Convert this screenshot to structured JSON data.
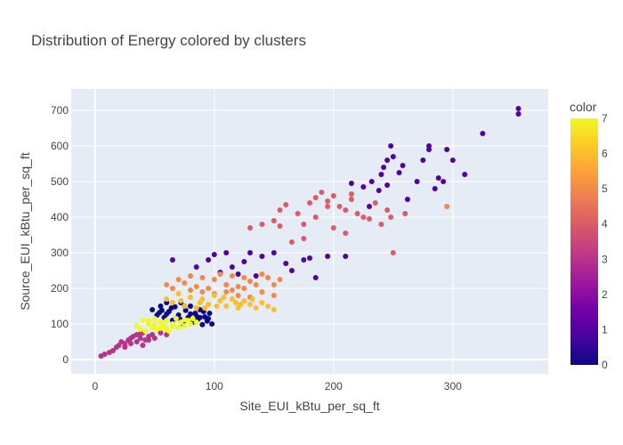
{
  "chart_data": {
    "type": "scatter",
    "title": "Distribution of Energy colored by clusters",
    "xlabel": "Site_EUI_kBtu_per_sq_ft",
    "ylabel": "Source_EUI_kBtu_per_sq_ft",
    "xlim": [
      -20,
      380
    ],
    "ylim": [
      -40,
      760
    ],
    "xticks": [
      0,
      100,
      200,
      300
    ],
    "yticks": [
      0,
      100,
      200,
      300,
      400,
      500,
      600,
      700
    ],
    "grid": true,
    "colorbar": {
      "title": "color",
      "range": [
        0,
        7
      ],
      "ticks": [
        0,
        1,
        2,
        3,
        4,
        5,
        6,
        7
      ],
      "colors": [
        "#0d0887",
        "#46039f",
        "#7201a8",
        "#9c179e",
        "#bd3786",
        "#d8576b",
        "#ed7953",
        "#fb9f3a",
        "#fdca26",
        "#f0f921"
      ]
    },
    "series": [
      {
        "cluster": 0,
        "points": [
          [
            48,
            140
          ],
          [
            52,
            125
          ],
          [
            55,
            150
          ],
          [
            58,
            118
          ],
          [
            60,
            160
          ],
          [
            62,
            135
          ],
          [
            65,
            110
          ],
          [
            67,
            148
          ],
          [
            70,
            125
          ],
          [
            72,
            160
          ],
          [
            74,
            100
          ],
          [
            76,
            138
          ],
          [
            78,
            118
          ],
          [
            80,
            150
          ],
          [
            82,
            105
          ],
          [
            84,
            130
          ],
          [
            86,
            112
          ],
          [
            88,
            140
          ],
          [
            90,
            98
          ],
          [
            92,
            120
          ],
          [
            94,
            108
          ],
          [
            96,
            130
          ],
          [
            98,
            100
          ],
          [
            56,
            138
          ],
          [
            64,
            145
          ],
          [
            68,
            115
          ],
          [
            75,
            150
          ],
          [
            85,
            122
          ],
          [
            91,
            135
          ],
          [
            60,
            128
          ],
          [
            72,
            112
          ],
          [
            80,
            128
          ],
          [
            88,
            118
          ],
          [
            95,
            115
          ],
          [
            54,
            132
          ]
        ]
      },
      {
        "cluster": 1,
        "points": [
          [
            65,
            280
          ],
          [
            85,
            260
          ],
          [
            95,
            280
          ],
          [
            100,
            295
          ],
          [
            110,
            300
          ],
          [
            115,
            260
          ],
          [
            125,
            275
          ],
          [
            130,
            300
          ],
          [
            140,
            290
          ],
          [
            150,
            300
          ],
          [
            160,
            270
          ],
          [
            175,
            280
          ],
          [
            180,
            285
          ],
          [
            195,
            290
          ],
          [
            120,
            240
          ],
          [
            135,
            235
          ],
          [
            105,
            245
          ],
          [
            165,
            250
          ],
          [
            185,
            230
          ],
          [
            210,
            290
          ],
          [
            215,
            495
          ],
          [
            225,
            485
          ],
          [
            232,
            500
          ],
          [
            238,
            475
          ],
          [
            240,
            520
          ],
          [
            242,
            540
          ],
          [
            245,
            560
          ],
          [
            250,
            570
          ],
          [
            255,
            525
          ],
          [
            258,
            545
          ],
          [
            262,
            450
          ],
          [
            270,
            500
          ],
          [
            275,
            560
          ],
          [
            280,
            590
          ],
          [
            285,
            480
          ],
          [
            288,
            510
          ],
          [
            292,
            500
          ],
          [
            295,
            590
          ],
          [
            300,
            560
          ],
          [
            310,
            520
          ],
          [
            325,
            635
          ],
          [
            355,
            690
          ],
          [
            355,
            705
          ],
          [
            248,
            600
          ],
          [
            280,
            600
          ],
          [
            230,
            430
          ],
          [
            245,
            490
          ]
        ]
      },
      {
        "cluster": 3,
        "points": [
          [
            5,
            10
          ],
          [
            8,
            15
          ],
          [
            12,
            20
          ],
          [
            15,
            25
          ],
          [
            18,
            35
          ],
          [
            20,
            40
          ],
          [
            22,
            50
          ],
          [
            25,
            45
          ],
          [
            28,
            55
          ],
          [
            30,
            60
          ],
          [
            32,
            65
          ],
          [
            35,
            70
          ],
          [
            38,
            60
          ],
          [
            40,
            75
          ],
          [
            42,
            55
          ],
          [
            45,
            65
          ],
          [
            48,
            70
          ],
          [
            50,
            60
          ],
          [
            55,
            75
          ],
          [
            60,
            70
          ],
          [
            30,
            45
          ],
          [
            35,
            50
          ],
          [
            40,
            40
          ],
          [
            45,
            55
          ],
          [
            25,
            35
          ],
          [
            38,
            72
          ]
        ]
      },
      {
        "cluster": 4,
        "points": [
          [
            130,
            370
          ],
          [
            140,
            380
          ],
          [
            150,
            390
          ],
          [
            155,
            420
          ],
          [
            160,
            435
          ],
          [
            170,
            410
          ],
          [
            175,
            380
          ],
          [
            180,
            440
          ],
          [
            185,
            455
          ],
          [
            190,
            470
          ],
          [
            195,
            445
          ],
          [
            200,
            460
          ],
          [
            205,
            430
          ],
          [
            210,
            420
          ],
          [
            215,
            450
          ],
          [
            220,
            410
          ],
          [
            225,
            400
          ],
          [
            230,
            395
          ],
          [
            235,
            440
          ],
          [
            240,
            380
          ],
          [
            245,
            420
          ],
          [
            248,
            400
          ],
          [
            250,
            300
          ],
          [
            260,
            410
          ],
          [
            165,
            330
          ],
          [
            175,
            340
          ],
          [
            185,
            400
          ],
          [
            195,
            430
          ],
          [
            200,
            370
          ],
          [
            210,
            355
          ],
          [
            155,
            375
          ],
          [
            215,
            465
          ]
        ]
      },
      {
        "cluster": 5,
        "points": [
          [
            60,
            210
          ],
          [
            65,
            200
          ],
          [
            70,
            225
          ],
          [
            75,
            215
          ],
          [
            80,
            235
          ],
          [
            85,
            205
          ],
          [
            90,
            230
          ],
          [
            95,
            200
          ],
          [
            100,
            225
          ],
          [
            105,
            240
          ],
          [
            110,
            210
          ],
          [
            115,
            235
          ],
          [
            120,
            205
          ],
          [
            125,
            230
          ],
          [
            130,
            220
          ],
          [
            135,
            210
          ],
          [
            140,
            240
          ],
          [
            145,
            230
          ],
          [
            150,
            210
          ],
          [
            155,
            225
          ],
          [
            90,
            190
          ],
          [
            100,
            185
          ],
          [
            110,
            190
          ],
          [
            120,
            180
          ],
          [
            130,
            175
          ],
          [
            140,
            190
          ],
          [
            150,
            180
          ],
          [
            115,
            195
          ],
          [
            125,
            200
          ],
          [
            80,
            195
          ],
          [
            295,
            430
          ]
        ]
      },
      {
        "cluster": 6,
        "points": [
          [
            60,
            170
          ],
          [
            65,
            160
          ],
          [
            70,
            185
          ],
          [
            75,
            150
          ],
          [
            80,
            175
          ],
          [
            85,
            145
          ],
          [
            90,
            170
          ],
          [
            95,
            155
          ],
          [
            100,
            180
          ],
          [
            105,
            165
          ],
          [
            110,
            150
          ],
          [
            115,
            170
          ],
          [
            120,
            145
          ],
          [
            125,
            165
          ],
          [
            130,
            155
          ],
          [
            135,
            145
          ],
          [
            140,
            160
          ],
          [
            145,
            150
          ],
          [
            150,
            140
          ],
          [
            72,
            165
          ],
          [
            88,
            160
          ],
          [
            102,
            150
          ],
          [
            118,
            160
          ],
          [
            132,
            170
          ],
          [
            92,
            145
          ],
          [
            108,
            175
          ],
          [
            122,
            155
          ]
        ]
      },
      {
        "cluster": 7,
        "points": [
          [
            35,
            95
          ],
          [
            38,
            85
          ],
          [
            40,
            110
          ],
          [
            42,
            80
          ],
          [
            45,
            100
          ],
          [
            48,
            90
          ],
          [
            50,
            115
          ],
          [
            52,
            85
          ],
          [
            55,
            105
          ],
          [
            58,
            95
          ],
          [
            60,
            110
          ],
          [
            62,
            80
          ],
          [
            65,
            100
          ],
          [
            68,
            115
          ],
          [
            70,
            90
          ],
          [
            72,
            105
          ],
          [
            75,
            95
          ],
          [
            78,
            110
          ],
          [
            80,
            100
          ],
          [
            82,
            115
          ],
          [
            85,
            105
          ],
          [
            45,
            110
          ],
          [
            55,
            88
          ],
          [
            65,
            92
          ],
          [
            75,
            112
          ],
          [
            50,
            98
          ],
          [
            60,
            85
          ]
        ]
      }
    ]
  }
}
